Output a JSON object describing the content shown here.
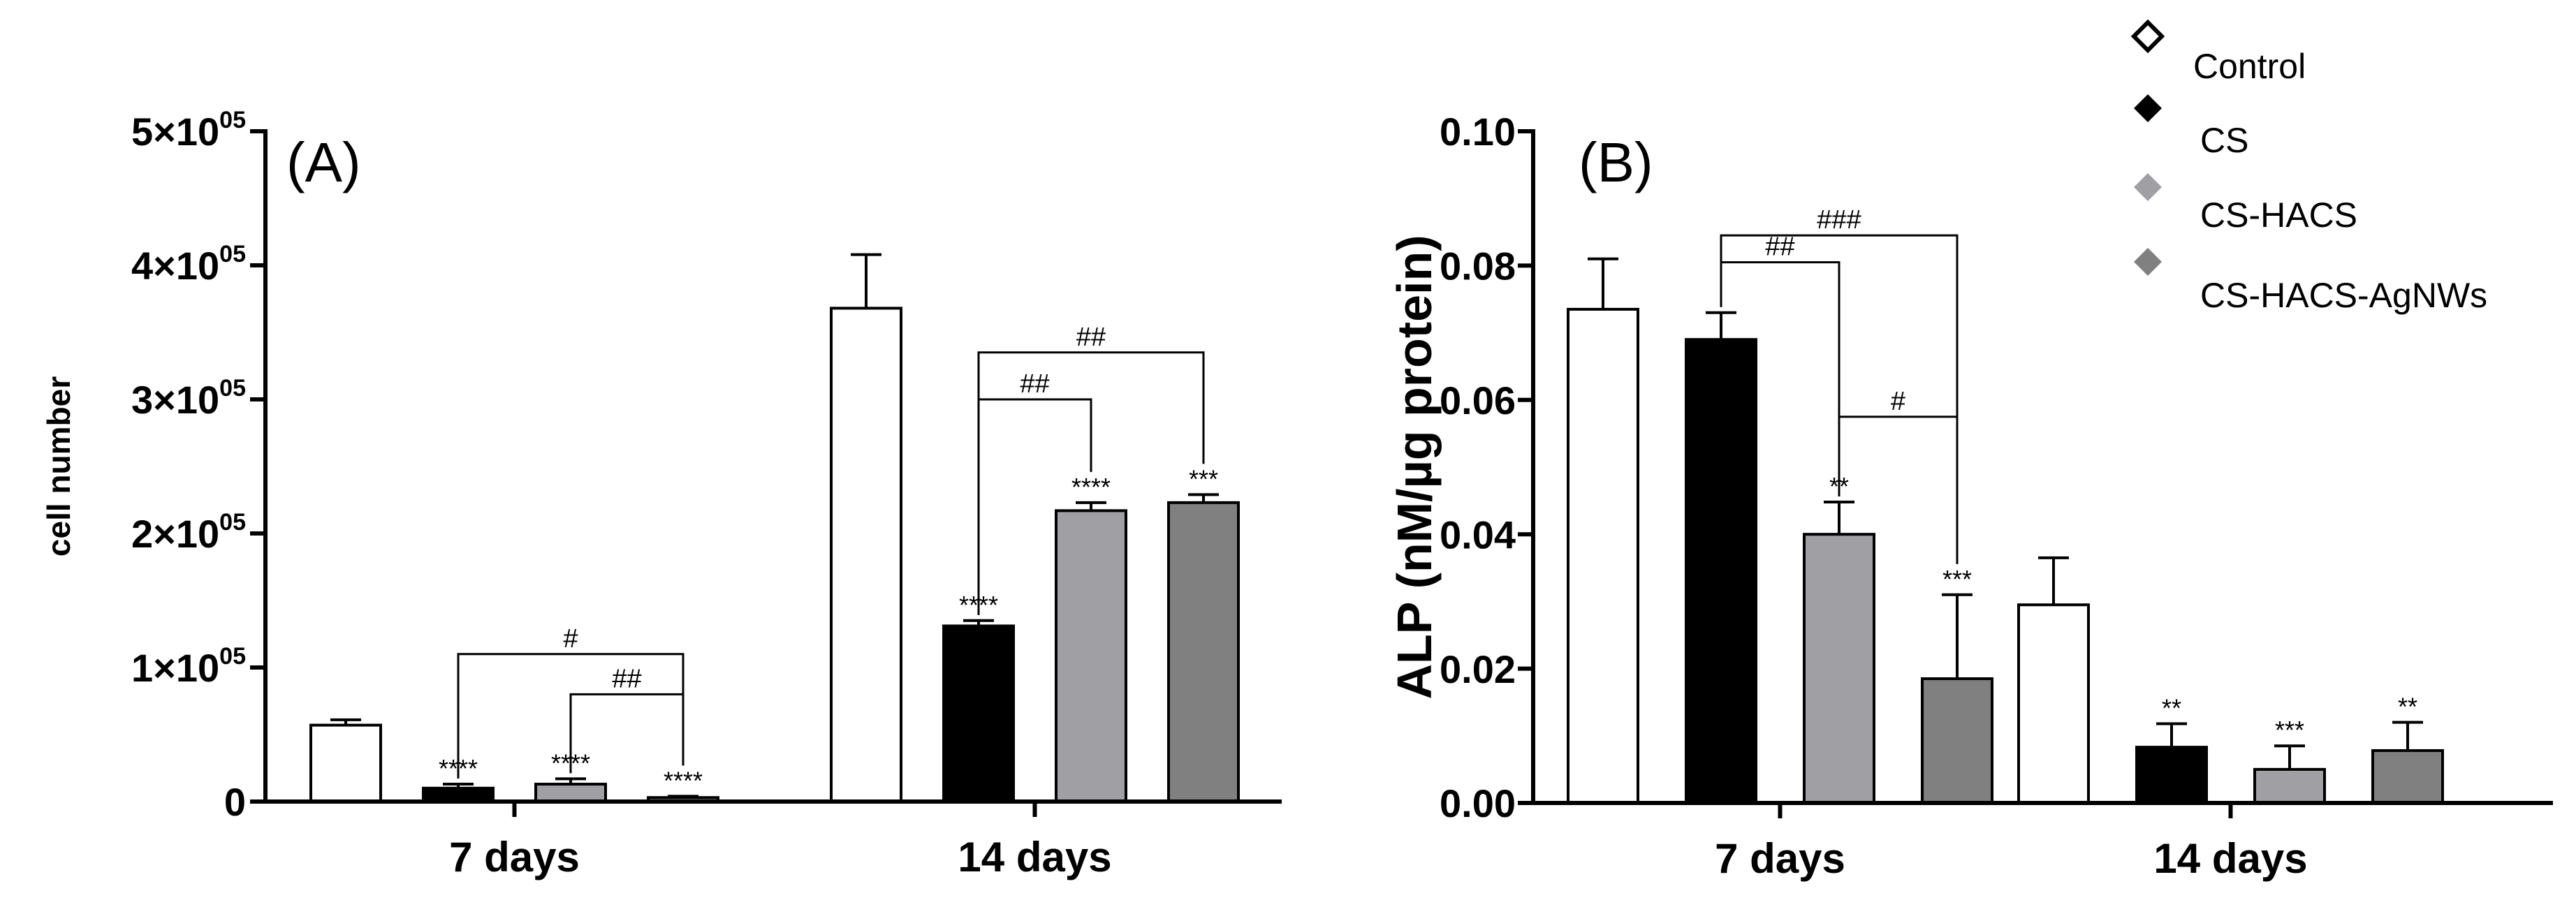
{
  "series_colors": {
    "Control": "#ffffff",
    "CS": "#000000",
    "CS-HACS": "#a0a0a4",
    "CS-HACS-AgNWs": "#808080"
  },
  "legend": {
    "position": "top-right",
    "items": [
      {
        "label": "Control",
        "marker": "diamond-open-icon"
      },
      {
        "label": "CS",
        "marker": "diamond-black-icon"
      },
      {
        "label": "CS-HACS",
        "marker": "diamond-lightgray-icon"
      },
      {
        "label": "CS-HACS-AgNWs",
        "marker": "diamond-gray-icon"
      }
    ]
  },
  "chart_data": [
    {
      "type": "bar",
      "panel_label": "(A)",
      "title": "",
      "xlabel": "",
      "ylabel": "cell number",
      "ylim": [
        0,
        500000
      ],
      "ytick_labels": [
        {
          "value": 0,
          "mantissa": "0",
          "exp": ""
        },
        {
          "value": 100000,
          "mantissa": "1×10",
          "exp": "05"
        },
        {
          "value": 200000,
          "mantissa": "2×10",
          "exp": "05"
        },
        {
          "value": 300000,
          "mantissa": "3×10",
          "exp": "05"
        },
        {
          "value": 400000,
          "mantissa": "4×10",
          "exp": "05"
        },
        {
          "value": 500000,
          "mantissa": "5×10",
          "exp": "05"
        }
      ],
      "categories": [
        "7 days",
        "14 days"
      ],
      "series": [
        {
          "name": "Control",
          "values": [
            57000,
            368000
          ],
          "errors": [
            4000,
            40000
          ],
          "stars": [
            "",
            ""
          ]
        },
        {
          "name": "CS",
          "values": [
            10000,
            131000
          ],
          "errors": [
            3000,
            4000
          ],
          "stars": [
            "****",
            "****"
          ]
        },
        {
          "name": "CS-HACS",
          "values": [
            13000,
            217000
          ],
          "errors": [
            4000,
            6000
          ],
          "stars": [
            "****",
            "****"
          ]
        },
        {
          "name": "CS-HACS-AgNWs",
          "values": [
            3000,
            223000
          ],
          "errors": [
            1000,
            6000
          ],
          "stars": [
            "****",
            "***"
          ]
        }
      ],
      "comparisons": [
        {
          "category": 0,
          "from": 1,
          "to": 3,
          "y": 110000,
          "label": "#"
        },
        {
          "category": 0,
          "from": 2,
          "to": 3,
          "y": 80000,
          "label": "##"
        },
        {
          "category": 1,
          "from": 1,
          "to": 2,
          "y": 300000,
          "label": "##"
        },
        {
          "category": 1,
          "from": 1,
          "to": 3,
          "y": 335000,
          "label": "##"
        }
      ]
    },
    {
      "type": "bar",
      "panel_label": "(B)",
      "title": "",
      "xlabel": "",
      "ylabel": "ALP (nM/µg protein)",
      "ylim": [
        0,
        0.1
      ],
      "ytick_labels": [
        {
          "value": 0,
          "mantissa": "0.00",
          "exp": ""
        },
        {
          "value": 0.02,
          "mantissa": "0.02",
          "exp": ""
        },
        {
          "value": 0.04,
          "mantissa": "0.04",
          "exp": ""
        },
        {
          "value": 0.06,
          "mantissa": "0.06",
          "exp": ""
        },
        {
          "value": 0.08,
          "mantissa": "0.08",
          "exp": ""
        },
        {
          "value": 0.1,
          "mantissa": "0.10",
          "exp": ""
        }
      ],
      "categories": [
        "7 days",
        "14 days"
      ],
      "series": [
        {
          "name": "Control",
          "values": [
            0.0735,
            0.0295
          ],
          "errors": [
            0.0075,
            0.007
          ],
          "stars": [
            "",
            ""
          ]
        },
        {
          "name": "CS",
          "values": [
            0.069,
            0.0083
          ],
          "errors": [
            0.004,
            0.0035
          ],
          "stars": [
            "",
            "**"
          ]
        },
        {
          "name": "CS-HACS",
          "values": [
            0.04,
            0.005
          ],
          "errors": [
            0.0048,
            0.0035
          ],
          "stars": [
            "**",
            "***"
          ]
        },
        {
          "name": "CS-HACS-AgNWs",
          "values": [
            0.0185,
            0.0078
          ],
          "errors": [
            0.0125,
            0.0042
          ],
          "stars": [
            "***",
            "**"
          ]
        }
      ],
      "comparisons": [
        {
          "category": 0,
          "from": 1,
          "to": 2,
          "y": 0.0805,
          "label": "##"
        },
        {
          "category": 0,
          "from": 1,
          "to": 3,
          "y": 0.0845,
          "label": "###"
        },
        {
          "category": 0,
          "from": 2,
          "to": 3,
          "y": 0.0575,
          "label": "#"
        }
      ]
    }
  ]
}
